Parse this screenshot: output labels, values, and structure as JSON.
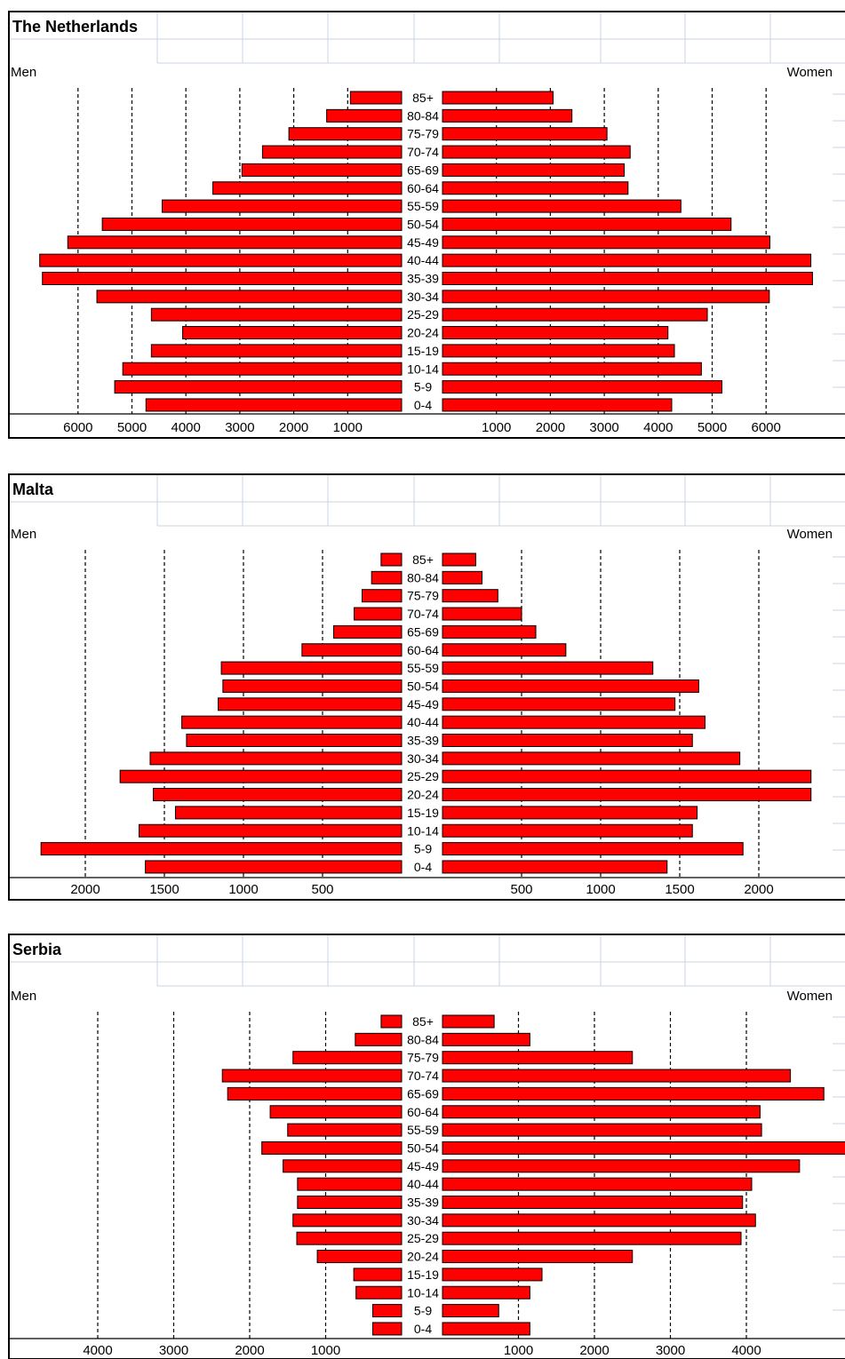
{
  "labels": {
    "men": "Men",
    "women": "Women"
  },
  "colors": {
    "bar": "#ff0000",
    "bar_stroke": "#000000",
    "grid": "#000000",
    "header_grid": "#c8d3e6"
  },
  "chart_data": [
    {
      "type": "bar",
      "title": "The Netherlands",
      "categories": [
        "85+",
        "80-84",
        "75-79",
        "70-74",
        "65-69",
        "60-64",
        "55-59",
        "50-54",
        "45-49",
        "40-44",
        "35-39",
        "30-34",
        "25-29",
        "20-24",
        "15-19",
        "10-14",
        "5-9",
        "0-4"
      ],
      "series": [
        {
          "name": "Men",
          "values": [
            950,
            1390,
            2090,
            2580,
            2960,
            3500,
            4440,
            5550,
            6190,
            6710,
            6660,
            5650,
            4640,
            4060,
            4640,
            5170,
            5320,
            4740
          ]
        },
        {
          "name": "Women",
          "values": [
            2050,
            2400,
            3050,
            3480,
            3370,
            3440,
            4420,
            5350,
            6070,
            6830,
            6860,
            6060,
            4910,
            4180,
            4300,
            4800,
            5180,
            4250
          ]
        }
      ],
      "xticks_men": [
        6000,
        5000,
        4000,
        3000,
        2000,
        1000
      ],
      "xticks_women": [
        1000,
        2000,
        3000,
        4000,
        5000,
        6000
      ],
      "grid": true
    },
    {
      "type": "bar",
      "title": "Malta",
      "categories": [
        "85+",
        "80-84",
        "75-79",
        "70-74",
        "65-69",
        "60-64",
        "55-59",
        "50-54",
        "45-49",
        "40-44",
        "35-39",
        "30-34",
        "25-29",
        "20-24",
        "15-19",
        "10-14",
        "5-9",
        "0-4"
      ],
      "series": [
        {
          "name": "Men",
          "values": [
            130,
            190,
            250,
            300,
            430,
            630,
            1140,
            1130,
            1160,
            1390,
            1360,
            1590,
            1780,
            1570,
            1430,
            1660,
            2280,
            1620
          ]
        },
        {
          "name": "Women",
          "values": [
            210,
            250,
            350,
            500,
            590,
            780,
            1330,
            1620,
            1470,
            1660,
            1580,
            1880,
            2330,
            2330,
            1610,
            1580,
            1900,
            1420
          ]
        }
      ],
      "xticks_men": [
        2000,
        1500,
        1000,
        500
      ],
      "xticks_women": [
        500,
        1000,
        1500,
        2000
      ],
      "grid": true
    },
    {
      "type": "bar",
      "title": "Serbia",
      "categories": [
        "85+",
        "80-84",
        "75-79",
        "70-74",
        "65-69",
        "60-64",
        "55-59",
        "50-54",
        "45-49",
        "40-44",
        "35-39",
        "30-34",
        "25-29",
        "20-24",
        "15-19",
        "10-14",
        "5-9",
        "0-4"
      ],
      "series": [
        {
          "name": "Men",
          "values": [
            270,
            610,
            1430,
            2360,
            2290,
            1730,
            1500,
            1840,
            1560,
            1370,
            1370,
            1430,
            1380,
            1110,
            630,
            600,
            380,
            380
          ]
        },
        {
          "name": "Women",
          "values": [
            680,
            1150,
            2500,
            4580,
            5020,
            4180,
            4200,
            5420,
            4700,
            4070,
            3950,
            4120,
            3930,
            2500,
            1310,
            1150,
            740,
            1150
          ]
        }
      ],
      "xticks_men": [
        4000,
        3000,
        2000,
        1000
      ],
      "xticks_women": [
        1000,
        2000,
        3000,
        4000
      ],
      "grid": true
    }
  ]
}
